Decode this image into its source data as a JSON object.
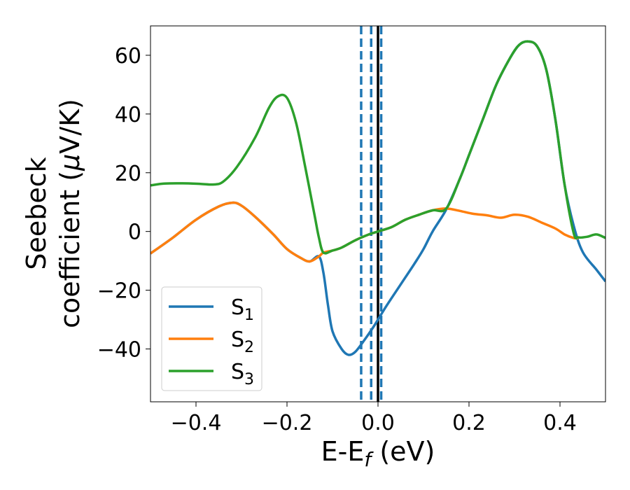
{
  "chart_data": {
    "type": "line",
    "title": "",
    "xlabel": {
      "main": "E-E",
      "sub": "f",
      "unit": " (eV)"
    },
    "ylabel": {
      "line1": "Seebeck",
      "line2": "coefficient  (",
      "mu": "μ",
      "unit": "V/K)"
    },
    "xlim": [
      -0.5,
      0.5
    ],
    "ylim": [
      -58,
      70
    ],
    "xticks": [
      -0.4,
      -0.2,
      0.0,
      0.2,
      0.4
    ],
    "xtick_labels": [
      "−0.4",
      "−0.2",
      "0.0",
      "0.2",
      "0.4"
    ],
    "yticks": [
      -40,
      -20,
      0,
      20,
      40,
      60
    ],
    "ytick_labels": [
      "−40",
      "−20",
      "0",
      "20",
      "40",
      "60"
    ],
    "grid": false,
    "legend_position": "lower-left",
    "vertical_lines": [
      {
        "x": 0.0,
        "style": "solid",
        "color": "#000000"
      },
      {
        "x": -0.037,
        "style": "dashed",
        "color": "#1f77b4"
      },
      {
        "x": -0.015,
        "style": "dashed",
        "color": "#1f77b4"
      },
      {
        "x": 0.007,
        "style": "dashed",
        "color": "#1f77b4"
      }
    ],
    "series": [
      {
        "name": "S",
        "sub": "1",
        "color": "#1f77b4",
        "points": [
          [
            -0.5,
            -7.5
          ],
          [
            -0.45,
            -2
          ],
          [
            -0.4,
            4
          ],
          [
            -0.35,
            8.5
          ],
          [
            -0.32,
            9.8
          ],
          [
            -0.3,
            8.8
          ],
          [
            -0.27,
            5
          ],
          [
            -0.23,
            -1
          ],
          [
            -0.2,
            -6
          ],
          [
            -0.17,
            -9
          ],
          [
            -0.15,
            -10.2
          ],
          [
            -0.13,
            -8.5
          ],
          [
            -0.12,
            -14
          ],
          [
            -0.11,
            -25
          ],
          [
            -0.1,
            -34
          ],
          [
            -0.08,
            -40
          ],
          [
            -0.065,
            -42
          ],
          [
            -0.05,
            -41
          ],
          [
            -0.03,
            -37
          ],
          [
            -0.01,
            -32.5
          ],
          [
            0.0,
            -30
          ],
          [
            0.02,
            -25
          ],
          [
            0.05,
            -18
          ],
          [
            0.08,
            -11
          ],
          [
            0.1,
            -6
          ],
          [
            0.12,
            0
          ],
          [
            0.15,
            7.5
          ],
          [
            0.18,
            18
          ],
          [
            0.2,
            26
          ],
          [
            0.23,
            38
          ],
          [
            0.26,
            50
          ],
          [
            0.29,
            59
          ],
          [
            0.31,
            63.5
          ],
          [
            0.33,
            64.7
          ],
          [
            0.35,
            63
          ],
          [
            0.37,
            55
          ],
          [
            0.39,
            38
          ],
          [
            0.41,
            16
          ],
          [
            0.43,
            2
          ],
          [
            0.45,
            -7
          ],
          [
            0.48,
            -13
          ],
          [
            0.5,
            -17
          ]
        ]
      },
      {
        "name": "S",
        "sub": "2",
        "color": "#ff7f0e",
        "points": [
          [
            -0.5,
            -7.5
          ],
          [
            -0.45,
            -2
          ],
          [
            -0.4,
            4
          ],
          [
            -0.35,
            8.5
          ],
          [
            -0.32,
            9.8
          ],
          [
            -0.3,
            8.8
          ],
          [
            -0.27,
            5
          ],
          [
            -0.23,
            -1
          ],
          [
            -0.2,
            -6
          ],
          [
            -0.17,
            -9
          ],
          [
            -0.15,
            -10.2
          ],
          [
            -0.13,
            -8.5
          ],
          [
            -0.12,
            -7.2
          ],
          [
            -0.1,
            -6.5
          ],
          [
            -0.08,
            -5.5
          ],
          [
            -0.05,
            -3
          ],
          [
            -0.02,
            -1
          ],
          [
            0.0,
            0
          ],
          [
            0.03,
            1.5
          ],
          [
            0.06,
            4
          ],
          [
            0.09,
            5.7
          ],
          [
            0.12,
            7.2
          ],
          [
            0.15,
            7.8
          ],
          [
            0.18,
            7
          ],
          [
            0.21,
            6
          ],
          [
            0.24,
            5.5
          ],
          [
            0.27,
            4.7
          ],
          [
            0.3,
            5.7
          ],
          [
            0.33,
            5
          ],
          [
            0.36,
            3
          ],
          [
            0.39,
            1
          ],
          [
            0.41,
            -1
          ],
          [
            0.43,
            -2.2
          ],
          [
            0.44,
            -2.3
          ]
        ]
      },
      {
        "name": "S",
        "sub": "3",
        "color": "#2ca02c",
        "points": [
          [
            -0.5,
            15.7
          ],
          [
            -0.47,
            16.3
          ],
          [
            -0.43,
            16.4
          ],
          [
            -0.39,
            16.2
          ],
          [
            -0.36,
            16
          ],
          [
            -0.34,
            17
          ],
          [
            -0.31,
            22
          ],
          [
            -0.27,
            32
          ],
          [
            -0.24,
            42
          ],
          [
            -0.22,
            46
          ],
          [
            -0.2,
            45.5
          ],
          [
            -0.18,
            37
          ],
          [
            -0.16,
            22
          ],
          [
            -0.14,
            6
          ],
          [
            -0.13,
            -2
          ],
          [
            -0.12,
            -7.2
          ],
          [
            -0.1,
            -6.5
          ],
          [
            -0.08,
            -5.5
          ],
          [
            -0.05,
            -3
          ],
          [
            -0.02,
            -1
          ],
          [
            0.0,
            0
          ],
          [
            0.03,
            1.5
          ],
          [
            0.06,
            4
          ],
          [
            0.09,
            5.7
          ],
          [
            0.12,
            7.2
          ],
          [
            0.15,
            7.8
          ],
          [
            0.18,
            18
          ],
          [
            0.2,
            26
          ],
          [
            0.23,
            38
          ],
          [
            0.26,
            50
          ],
          [
            0.29,
            59
          ],
          [
            0.31,
            63.5
          ],
          [
            0.33,
            64.7
          ],
          [
            0.35,
            63
          ],
          [
            0.37,
            55
          ],
          [
            0.39,
            38
          ],
          [
            0.41,
            16
          ],
          [
            0.43,
            -0.5
          ],
          [
            0.44,
            -2
          ],
          [
            0.46,
            -1.8
          ],
          [
            0.48,
            -1
          ],
          [
            0.5,
            -2.2
          ]
        ]
      }
    ]
  }
}
